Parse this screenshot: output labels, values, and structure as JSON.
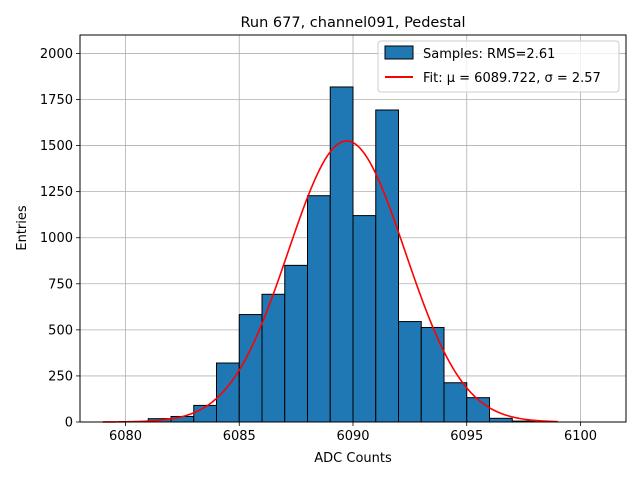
{
  "chart_data": {
    "type": "bar",
    "title": "Run 677, channel091, Pedestal",
    "xlabel": "ADC Counts",
    "ylabel": "Entries",
    "xlim": [
      6078,
      6102
    ],
    "ylim": [
      0,
      2100
    ],
    "xticks": [
      6080,
      6085,
      6090,
      6095,
      6100
    ],
    "yticks": [
      0,
      250,
      500,
      750,
      1000,
      1250,
      1500,
      1750,
      2000
    ],
    "grid": true,
    "legend_position": "top-right",
    "histogram": {
      "name": "Samples: RMS=2.61",
      "color": "#1f77b4",
      "edgecolor": "#000000",
      "bin_width": 1,
      "bins": [
        {
          "x0": 6081,
          "value": 18
        },
        {
          "x0": 6082,
          "value": 30
        },
        {
          "x0": 6083,
          "value": 90
        },
        {
          "x0": 6084,
          "value": 320
        },
        {
          "x0": 6085,
          "value": 583
        },
        {
          "x0": 6086,
          "value": 693
        },
        {
          "x0": 6087,
          "value": 850
        },
        {
          "x0": 6088,
          "value": 1228
        },
        {
          "x0": 6089,
          "value": 1818
        },
        {
          "x0": 6090,
          "value": 1120
        },
        {
          "x0": 6091,
          "value": 1693
        },
        {
          "x0": 6092,
          "value": 545
        },
        {
          "x0": 6093,
          "value": 513
        },
        {
          "x0": 6094,
          "value": 213
        },
        {
          "x0": 6095,
          "value": 132
        },
        {
          "x0": 6096,
          "value": 20
        },
        {
          "x0": 6097,
          "value": 5
        }
      ]
    },
    "fit": {
      "name": "Fit: μ = 6089.722, σ = 2.57",
      "color": "#ff0000",
      "mu": 6089.722,
      "sigma": 2.57,
      "amplitude": 1525,
      "x_range": [
        6079,
        6099
      ]
    }
  }
}
